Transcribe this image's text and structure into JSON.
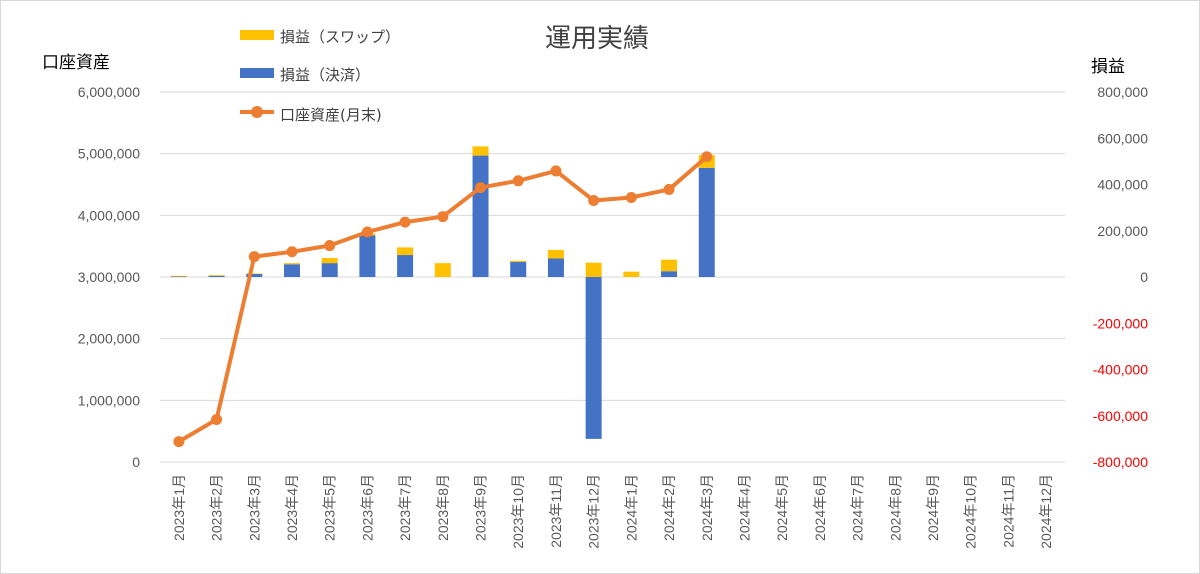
{
  "chart_data": {
    "type": "bar+line",
    "title": "運用実績",
    "left_axis_title": "口座資産",
    "right_axis_title": "損益",
    "categories": [
      "2023年1月",
      "2023年2月",
      "2023年3月",
      "2023年4月",
      "2023年5月",
      "2023年6月",
      "2023年7月",
      "2023年8月",
      "2023年9月",
      "2023年10月",
      "2023年11月",
      "2023年12月",
      "2024年1月",
      "2024年2月",
      "2024年3月",
      "2024年4月",
      "2024年5月",
      "2024年6月",
      "2024年7月",
      "2024年8月",
      "2024年9月",
      "2024年10月",
      "2024年11月",
      "2024年12月"
    ],
    "left_axis": {
      "min": 0,
      "max": 6000000,
      "ticks": [
        "0",
        "1,000,000",
        "2,000,000",
        "3,000,000",
        "4,000,000",
        "5,000,000",
        "6,000,000"
      ]
    },
    "right_axis": {
      "min": -800000,
      "max": 800000,
      "ticks": [
        "-800,000",
        "-600,000",
        "-400,000",
        "-200,000",
        "0",
        "200,000",
        "400,000",
        "600,000",
        "800,000"
      ],
      "negative_color": "#ff0000"
    },
    "series": [
      {
        "name": "損益（スワップ）",
        "kind": "bar",
        "axis": "right",
        "color": "#ffc000",
        "values": [
          3000,
          3000,
          2000,
          5000,
          22000,
          8000,
          33000,
          60000,
          40000,
          5000,
          37000,
          62000,
          23000,
          50000,
          55000,
          null,
          null,
          null,
          null,
          null,
          null,
          null,
          null,
          null
        ]
      },
      {
        "name": "損益（決済）",
        "kind": "bar",
        "axis": "right",
        "color": "#4472c4",
        "values": [
          2000,
          5000,
          13000,
          55000,
          60000,
          180000,
          95000,
          0,
          525000,
          65000,
          80000,
          -700000,
          0,
          25000,
          472000,
          null,
          null,
          null,
          null,
          null,
          null,
          null,
          null,
          null
        ]
      },
      {
        "name": "口座資産(月末)",
        "kind": "line",
        "axis": "left",
        "color": "#ed7d31",
        "values": [
          330000,
          690000,
          3330000,
          3410000,
          3510000,
          3730000,
          3890000,
          3980000,
          4450000,
          4560000,
          4720000,
          4240000,
          4290000,
          4420000,
          4950000,
          null,
          null,
          null,
          null,
          null,
          null,
          null,
          null,
          null
        ]
      }
    ],
    "grid": true,
    "legend_position": "top-left"
  }
}
